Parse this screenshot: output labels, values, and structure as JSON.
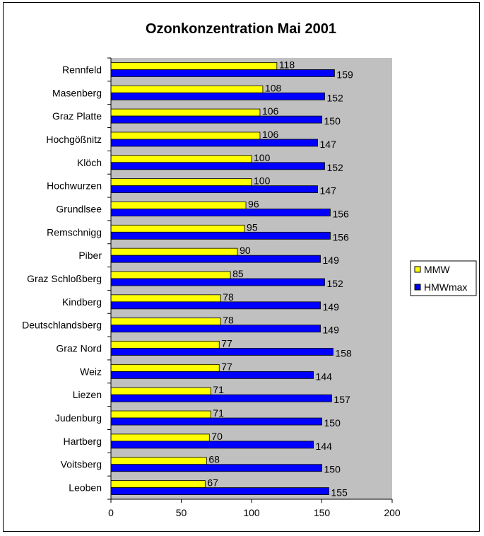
{
  "chart_data": {
    "type": "bar",
    "orientation": "horizontal",
    "title": "Ozonkonzentration Mai 2001",
    "xlabel": "",
    "ylabel": "",
    "xlim": [
      0,
      200
    ],
    "x_ticks": [
      "0",
      "50",
      "100",
      "150",
      "200"
    ],
    "x_tick_values": [
      0,
      50,
      100,
      150,
      200
    ],
    "grid": false,
    "plot_background": "#c0c0c0",
    "legend_position": "right",
    "data_labels": true,
    "categories": [
      "Rennfeld",
      "Masenberg",
      "Graz Platte",
      "Hochgößnitz",
      "Klöch",
      "Hochwurzen",
      "Grundlsee",
      "Remschnigg",
      "Piber",
      "Graz Schloßberg",
      "Kindberg",
      "Deutschlandsberg",
      "Graz Nord",
      "Weiz",
      "Liezen",
      "Judenburg",
      "Hartberg",
      "Voitsberg",
      "Leoben"
    ],
    "series": [
      {
        "name": "MMW",
        "color": "#ffff00",
        "values": [
          118,
          108,
          106,
          106,
          100,
          100,
          96,
          95,
          90,
          85,
          78,
          78,
          77,
          77,
          71,
          71,
          70,
          68,
          67
        ]
      },
      {
        "name": "HMWmax",
        "color": "#0000ff",
        "values": [
          159,
          152,
          150,
          147,
          152,
          147,
          156,
          156,
          149,
          152,
          149,
          149,
          158,
          144,
          157,
          150,
          144,
          150,
          155
        ]
      }
    ]
  }
}
